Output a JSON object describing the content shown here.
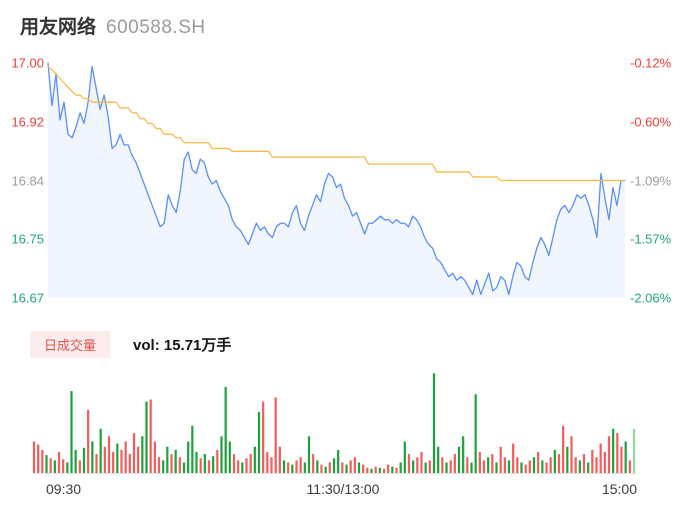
{
  "header": {
    "title": "用友网络",
    "code": "600588.SH"
  },
  "volume_header": {
    "badge": "日成交量",
    "vol_label": "vol: 15.71万手"
  },
  "colors": {
    "up_text": "#f0403c",
    "down_text": "#1fa77d",
    "neutral_text": "#9e9e9e",
    "price_line": "#5b8ff9",
    "price_fill": "rgba(91,143,249,0.09)",
    "avg_line": "#f8bb4a",
    "vol_up": "#f45b5b",
    "vol_down": "#1ca23a",
    "vol_last": "#90d9a1",
    "baseline": "#e2e2e2"
  },
  "chart_data": [
    {
      "type": "line",
      "x_ticks": [
        "09:30",
        "11:30/13:00",
        "15:00"
      ],
      "y_ticks_price": [
        {
          "label": "17.00",
          "color": "#f0403c"
        },
        {
          "label": "16.92",
          "color": "#f0403c"
        },
        {
          "label": "16.84",
          "color": "#9e9e9e"
        },
        {
          "label": "16.75",
          "color": "#1fa77d"
        },
        {
          "label": "16.67",
          "color": "#1fa77d"
        }
      ],
      "y_ticks_pct": [
        {
          "label": "-0.12%",
          "color": "#f0403c"
        },
        {
          "label": "-0.60%",
          "color": "#f0403c"
        },
        {
          "label": "-1.09%",
          "color": "#9e9e9e"
        },
        {
          "label": "-1.57%",
          "color": "#1fa77d"
        },
        {
          "label": "-2.06%",
          "color": "#1fa77d"
        }
      ],
      "ylim": [
        16.67,
        17.0
      ],
      "grid": false,
      "series": [
        {
          "name": "price",
          "color": "#5b8ff9",
          "values": [
            17.0,
            16.94,
            16.985,
            16.92,
            16.945,
            16.9,
            16.895,
            16.91,
            16.93,
            16.915,
            16.945,
            16.995,
            16.965,
            16.935,
            16.955,
            16.925,
            16.88,
            16.885,
            16.9,
            16.885,
            16.885,
            16.87,
            16.86,
            16.845,
            16.83,
            16.815,
            16.8,
            16.785,
            16.77,
            16.775,
            16.815,
            16.8,
            16.79,
            16.82,
            16.865,
            16.875,
            16.85,
            16.845,
            16.865,
            16.86,
            16.84,
            16.83,
            16.835,
            16.82,
            16.81,
            16.8,
            16.78,
            16.77,
            16.765,
            16.755,
            16.745,
            16.76,
            16.775,
            16.765,
            16.77,
            16.76,
            16.755,
            16.77,
            16.775,
            16.775,
            16.77,
            16.79,
            16.8,
            16.775,
            16.765,
            16.785,
            16.8,
            16.815,
            16.805,
            16.83,
            16.845,
            16.84,
            16.825,
            16.83,
            16.81,
            16.8,
            16.785,
            16.79,
            16.775,
            16.76,
            16.775,
            16.775,
            16.78,
            16.785,
            16.78,
            16.78,
            16.775,
            16.78,
            16.775,
            16.775,
            16.77,
            16.785,
            16.78,
            16.77,
            16.755,
            16.745,
            16.74,
            16.725,
            16.72,
            16.71,
            16.7,
            16.705,
            16.695,
            16.7,
            16.695,
            16.685,
            16.675,
            16.695,
            16.675,
            16.69,
            16.705,
            16.68,
            16.685,
            16.7,
            16.695,
            16.675,
            16.7,
            16.72,
            16.715,
            16.7,
            16.695,
            16.72,
            16.74,
            16.755,
            16.745,
            16.73,
            16.755,
            16.78,
            16.795,
            16.8,
            16.79,
            16.8,
            16.815,
            16.81,
            16.815,
            16.8,
            16.78,
            16.755,
            16.845,
            16.81,
            16.78,
            16.825,
            16.8,
            16.835,
            16.835
          ]
        },
        {
          "name": "average",
          "color": "#f8bb4a",
          "values": [
            16.995,
            16.99,
            16.985,
            16.978,
            16.972,
            16.966,
            16.96,
            16.955,
            16.955,
            16.95,
            16.95,
            16.945,
            16.945,
            16.945,
            16.945,
            16.945,
            16.945,
            16.945,
            16.937,
            16.937,
            16.937,
            16.93,
            16.93,
            16.922,
            16.922,
            16.915,
            16.915,
            16.908,
            16.908,
            16.9,
            16.9,
            16.9,
            16.895,
            16.895,
            16.888,
            16.888,
            16.888,
            16.888,
            16.888,
            16.888,
            16.888,
            16.88,
            16.88,
            16.88,
            16.88,
            16.88,
            16.876,
            16.876,
            16.876,
            16.876,
            16.876,
            16.876,
            16.876,
            16.876,
            16.876,
            16.876,
            16.868,
            16.868,
            16.868,
            16.868,
            16.868,
            16.868,
            16.868,
            16.868,
            16.868,
            16.868,
            16.868,
            16.868,
            16.868,
            16.868,
            16.868,
            16.868,
            16.868,
            16.868,
            16.868,
            16.868,
            16.868,
            16.868,
            16.868,
            16.868,
            16.858,
            16.858,
            16.858,
            16.858,
            16.858,
            16.858,
            16.858,
            16.858,
            16.858,
            16.858,
            16.858,
            16.858,
            16.858,
            16.858,
            16.858,
            16.858,
            16.858,
            16.847,
            16.847,
            16.847,
            16.847,
            16.847,
            16.847,
            16.847,
            16.847,
            16.847,
            16.84,
            16.84,
            16.84,
            16.84,
            16.84,
            16.84,
            16.84,
            16.835,
            16.835,
            16.835,
            16.835,
            16.835,
            16.835,
            16.835,
            16.835,
            16.835,
            16.835,
            16.835,
            16.835,
            16.835,
            16.835,
            16.835,
            16.835,
            16.835,
            16.835,
            16.835,
            16.835,
            16.835,
            16.835,
            16.835,
            16.835,
            16.835,
            16.835,
            16.835,
            16.835,
            16.835,
            16.835,
            16.835,
            16.835
          ]
        }
      ]
    },
    {
      "type": "bar",
      "name": "volume",
      "values": [
        30,
        27,
        22,
        17,
        14,
        12,
        20,
        13,
        10,
        78,
        22,
        12,
        24,
        60,
        30,
        18,
        42,
        25,
        35,
        20,
        28,
        22,
        30,
        18,
        38,
        25,
        35,
        68,
        70,
        30,
        15,
        12,
        25,
        18,
        22,
        15,
        10,
        30,
        45,
        20,
        14,
        18,
        12,
        16,
        22,
        35,
        82,
        30,
        18,
        12,
        10,
        14,
        18,
        25,
        58,
        68,
        20,
        15,
        72,
        25,
        12,
        10,
        8,
        12,
        15,
        10,
        35,
        18,
        12,
        8,
        6,
        10,
        14,
        22,
        10,
        8,
        12,
        15,
        10,
        8,
        5,
        4,
        6,
        5,
        4,
        8,
        6,
        5,
        10,
        30,
        18,
        12,
        15,
        20,
        10,
        12,
        95,
        25,
        15,
        10,
        12,
        18,
        25,
        35,
        15,
        10,
        75,
        20,
        12,
        15,
        18,
        10,
        25,
        15,
        12,
        28,
        15,
        10,
        8,
        12,
        15,
        20,
        12,
        10,
        15,
        22,
        18,
        45,
        25,
        35,
        15,
        12,
        18,
        10,
        22,
        15,
        28,
        20,
        35,
        42,
        38,
        25,
        30,
        12,
        42
      ],
      "directions": "rrrgrgrrgggrgrgrgrrrgrrrrrggrrrggrgrggggrgrgrgggrrgrrggrrrrrgrgrrggrgrgrggrgrrgrrgrgrrgrggrgrrgrggrgrrggrggrrgrgrrgrrgrrgrgrrgrrgrrgrgrrrrrgrrgrG"
    }
  ]
}
